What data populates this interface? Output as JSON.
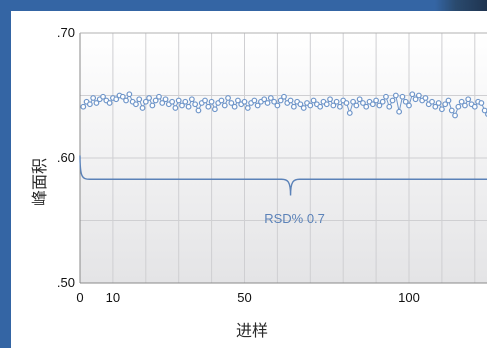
{
  "chart_data": {
    "type": "scatter",
    "title": "",
    "xlabel": "进样",
    "ylabel": "峰面积",
    "xlim": [
      0,
      125
    ],
    "ylim": [
      0.5,
      0.7
    ],
    "xticks": [
      0,
      10,
      50,
      100
    ],
    "xtick_labels": [
      "0",
      "10",
      "50",
      "100"
    ],
    "yticks": [
      0.5,
      0.6,
      0.7
    ],
    "ytick_labels": [
      ".50",
      ".60",
      ".70"
    ],
    "grid": true,
    "series": [
      {
        "color": "#6e95c9",
        "x": [
          1,
          2,
          3,
          4,
          5,
          6,
          7,
          8,
          9,
          10,
          11,
          12,
          13,
          14,
          15,
          16,
          17,
          18,
          19,
          20,
          21,
          22,
          23,
          24,
          25,
          26,
          27,
          28,
          29,
          30,
          31,
          32,
          33,
          34,
          35,
          36,
          37,
          38,
          39,
          40,
          41,
          42,
          43,
          44,
          45,
          46,
          47,
          48,
          49,
          50,
          51,
          52,
          53,
          54,
          55,
          56,
          57,
          58,
          59,
          60,
          61,
          62,
          63,
          64,
          65,
          66,
          67,
          68,
          69,
          70,
          71,
          72,
          73,
          74,
          75,
          76,
          77,
          78,
          79,
          80,
          81,
          82,
          83,
          84,
          85,
          86,
          87,
          88,
          89,
          90,
          91,
          92,
          93,
          94,
          95,
          96,
          97,
          98,
          99,
          100,
          101,
          102,
          103,
          104,
          105,
          106,
          107,
          108,
          109,
          110,
          111,
          112,
          113,
          114,
          115,
          116,
          117,
          118,
          119,
          120,
          121,
          122,
          123,
          124
        ],
        "y": [
          0.641,
          0.645,
          0.643,
          0.648,
          0.644,
          0.647,
          0.649,
          0.646,
          0.644,
          0.648,
          0.647,
          0.65,
          0.649,
          0.646,
          0.651,
          0.645,
          0.643,
          0.647,
          0.64,
          0.645,
          0.648,
          0.642,
          0.646,
          0.649,
          0.644,
          0.647,
          0.643,
          0.645,
          0.64,
          0.646,
          0.642,
          0.645,
          0.641,
          0.647,
          0.643,
          0.638,
          0.644,
          0.646,
          0.641,
          0.645,
          0.639,
          0.644,
          0.646,
          0.642,
          0.648,
          0.644,
          0.641,
          0.646,
          0.643,
          0.645,
          0.64,
          0.644,
          0.646,
          0.642,
          0.645,
          0.647,
          0.644,
          0.648,
          0.645,
          0.642,
          0.646,
          0.649,
          0.644,
          0.646,
          0.641,
          0.645,
          0.643,
          0.64,
          0.644,
          0.642,
          0.646,
          0.643,
          0.641,
          0.645,
          0.643,
          0.647,
          0.642,
          0.645,
          0.641,
          0.646,
          0.644,
          0.636,
          0.645,
          0.642,
          0.647,
          0.644,
          0.641,
          0.645,
          0.643,
          0.646,
          0.642,
          0.645,
          0.649,
          0.641,
          0.646,
          0.65,
          0.637,
          0.649,
          0.645,
          0.642,
          0.651,
          0.647,
          0.65,
          0.646,
          0.648,
          0.643,
          0.645,
          0.641,
          0.644,
          0.639,
          0.643,
          0.646,
          0.638,
          0.634,
          0.641,
          0.645,
          0.642,
          0.647,
          0.643,
          0.641,
          0.645,
          0.644,
          0.638,
          0.635
        ]
      }
    ],
    "annotation": {
      "text": "RSD% 0.7",
      "x_start": 0,
      "x_end": 125,
      "x_tip": 64,
      "y_level": 0.583,
      "y_tip": 0.57,
      "color": "#5b82b8"
    }
  }
}
